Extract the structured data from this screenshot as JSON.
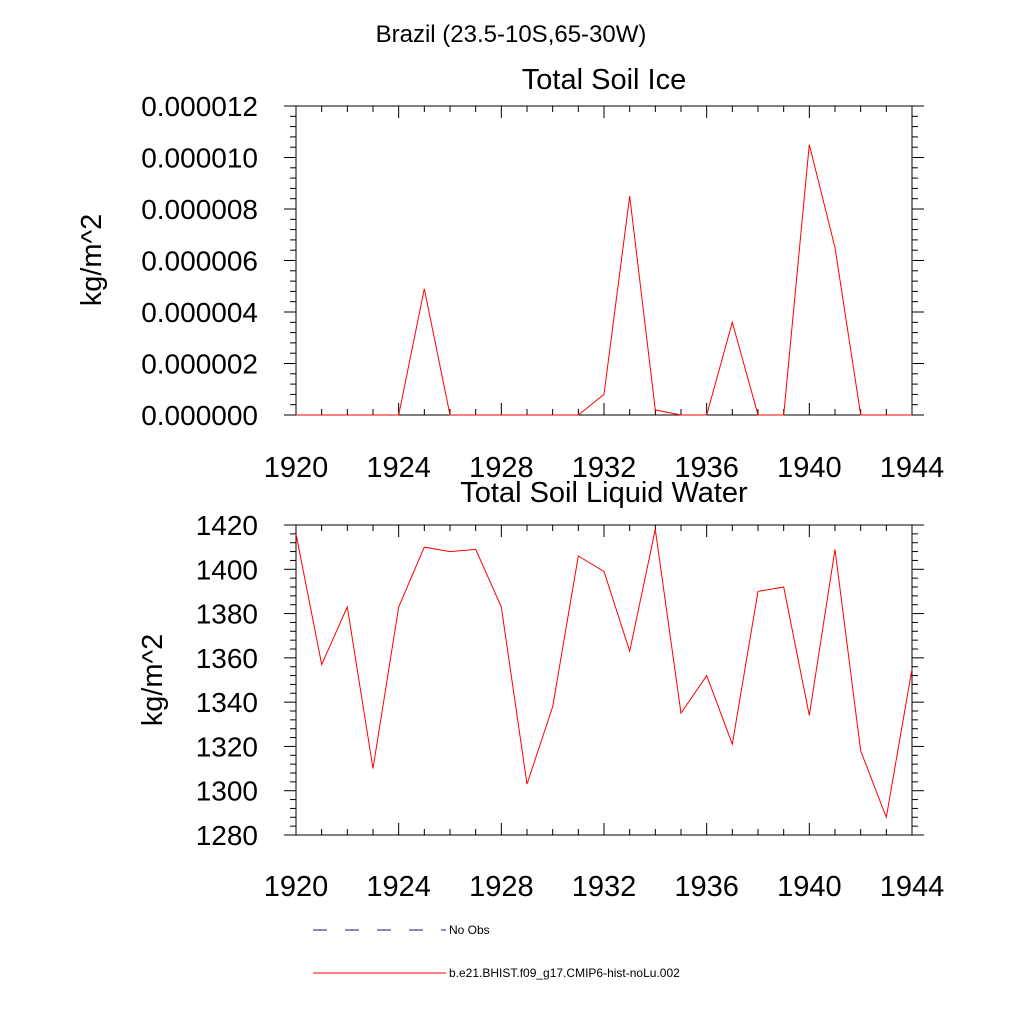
{
  "page_title": "Brazil (23.5-10S,65-30W)",
  "colors": {
    "model": "#ff0000",
    "obs": "#1a1a6e",
    "axis": "#000000"
  },
  "chart_data": [
    {
      "type": "line",
      "title": "Total Soil Ice",
      "ylabel": "kg/m^2",
      "xlabel": "",
      "xlim": [
        1920,
        1944
      ],
      "ylim": [
        0,
        1.2e-05
      ],
      "x_ticks": [
        "1920",
        "1924",
        "1928",
        "1932",
        "1936",
        "1940",
        "1944"
      ],
      "y_ticks": [
        "0.000000",
        "0.000002",
        "0.000004",
        "0.000006",
        "0.000008",
        "0.000010",
        "0.000012"
      ],
      "y_tick_values": [
        0,
        2e-06,
        4e-06,
        6e-06,
        8e-06,
        1e-05,
        1.2e-05
      ],
      "x": [
        1920,
        1921,
        1922,
        1923,
        1924,
        1925,
        1926,
        1927,
        1928,
        1929,
        1930,
        1931,
        1932,
        1933,
        1934,
        1935,
        1936,
        1937,
        1938,
        1939,
        1940,
        1941,
        1942,
        1943,
        1944
      ],
      "series": [
        {
          "name": "b.e21.BHIST.f09_g17.CMIP6-hist-noLu.002",
          "color": "#ff0000",
          "values": [
            0,
            0,
            0,
            0,
            0,
            4.9e-06,
            0,
            0,
            0,
            0,
            0,
            0,
            8e-07,
            8.5e-06,
            2e-07,
            0,
            0,
            3.6e-06,
            0,
            0,
            1.05e-05,
            6.5e-06,
            0,
            0,
            0
          ]
        }
      ]
    },
    {
      "type": "line",
      "title": "Total Soil Liquid Water",
      "ylabel": "kg/m^2",
      "xlabel": "",
      "xlim": [
        1920,
        1944
      ],
      "ylim": [
        1280,
        1420
      ],
      "x_ticks": [
        "1920",
        "1924",
        "1928",
        "1932",
        "1936",
        "1940",
        "1944"
      ],
      "y_ticks": [
        "1280",
        "1300",
        "1320",
        "1340",
        "1360",
        "1380",
        "1400",
        "1420"
      ],
      "y_tick_values": [
        1280,
        1300,
        1320,
        1340,
        1360,
        1380,
        1400,
        1420
      ],
      "x": [
        1920,
        1921,
        1922,
        1923,
        1924,
        1925,
        1926,
        1927,
        1928,
        1929,
        1930,
        1931,
        1932,
        1933,
        1934,
        1935,
        1936,
        1937,
        1938,
        1939,
        1940,
        1941,
        1942,
        1943,
        1944
      ],
      "series": [
        {
          "name": "b.e21.BHIST.f09_g17.CMIP6-hist-noLu.002",
          "color": "#ff0000",
          "values": [
            1416,
            1357,
            1383,
            1310,
            1383,
            1410,
            1408,
            1409,
            1383,
            1303,
            1338,
            1406,
            1399,
            1363,
            1418,
            1335,
            1352,
            1321,
            1390,
            1392,
            1334,
            1409,
            1318,
            1288,
            1355
          ]
        }
      ]
    }
  ],
  "legend": {
    "entries": [
      {
        "label": "No Obs",
        "style": "dashed",
        "color": "#1a1a6e"
      },
      {
        "label": "b.e21.BHIST.f09_g17.CMIP6-hist-noLu.002",
        "style": "solid",
        "color": "#ff0000"
      }
    ]
  }
}
